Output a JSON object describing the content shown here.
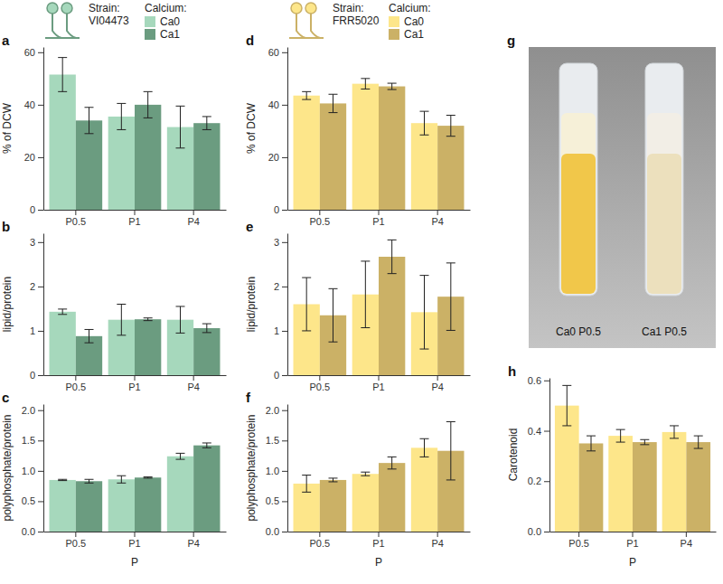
{
  "chart_data": [
    {
      "type": "bar",
      "title": "a",
      "y_label": "% of DCW",
      "strain_label": "Strain:",
      "strain": "VI04473",
      "legend_title": "Calcium:",
      "legend": "top",
      "categories": [
        "P0.5",
        "P1",
        "P4"
      ],
      "series": [
        {
          "name": "Ca0",
          "color": "#a6d8bc",
          "values": [
            51.5,
            35.5,
            31.5
          ],
          "errors": [
            6.5,
            5,
            8
          ]
        },
        {
          "name": "Ca1",
          "color": "#6b9c80",
          "values": [
            34,
            40,
            33
          ],
          "errors": [
            5,
            5,
            2.5
          ]
        }
      ],
      "ylim": [
        0,
        62
      ],
      "yticks": [
        0,
        20,
        40,
        60
      ],
      "grid": false
    },
    {
      "type": "bar",
      "title": "b",
      "y_label": "lipid/protein",
      "categories": [
        "P0.5",
        "P1",
        "P4"
      ],
      "series": [
        {
          "name": "Ca0",
          "color": "#a6d8bc",
          "values": [
            1.43,
            1.25,
            1.25
          ],
          "errors": [
            0.06,
            0.35,
            0.3
          ]
        },
        {
          "name": "Ca1",
          "color": "#6b9c80",
          "values": [
            0.88,
            1.26,
            1.06
          ],
          "errors": [
            0.15,
            0.03,
            0.1
          ]
        }
      ],
      "ylim": [
        0,
        3.2
      ],
      "yticks": [
        0,
        1,
        2,
        3
      ],
      "grid": false
    },
    {
      "type": "bar",
      "title": "c",
      "y_label": "polyphosphate/protein",
      "x_label": "P",
      "categories": [
        "P0.5",
        "P1",
        "P4"
      ],
      "series": [
        {
          "name": "Ca0",
          "color": "#a6d8bc",
          "values": [
            0.85,
            0.86,
            1.24
          ],
          "errors": [
            0.01,
            0.06,
            0.05
          ]
        },
        {
          "name": "Ca1",
          "color": "#6b9c80",
          "values": [
            0.83,
            0.89,
            1.42
          ],
          "errors": [
            0.03,
            0.01,
            0.04
          ]
        }
      ],
      "ylim": [
        0,
        2.1
      ],
      "yticks": [
        {
          "value": 0,
          "label": "0.0"
        },
        0.5,
        {
          "value": 1,
          "label": "1.0"
        },
        1.5,
        {
          "value": 2,
          "label": "2.0"
        }
      ],
      "grid": false
    },
    {
      "type": "bar",
      "title": "d",
      "y_label": "% of DCW",
      "strain_label": "Strain:",
      "strain": "FRR5020",
      "legend_title": "Calcium:",
      "legend": "top",
      "categories": [
        "P0.5",
        "P1",
        "P4"
      ],
      "series": [
        {
          "name": "Ca0",
          "color": "#fde68a",
          "values": [
            43.5,
            48,
            33
          ],
          "errors": [
            1.5,
            2,
            4.5
          ]
        },
        {
          "name": "Ca1",
          "color": "#cbb166",
          "values": [
            40.5,
            47,
            32
          ],
          "errors": [
            3.5,
            1.2,
            4
          ]
        }
      ],
      "ylim": [
        0,
        62
      ],
      "yticks": [
        0,
        20,
        40,
        60
      ],
      "grid": false
    },
    {
      "type": "bar",
      "title": "e",
      "y_label": "lipid/protein",
      "categories": [
        "P0.5",
        "P1",
        "P4"
      ],
      "series": [
        {
          "name": "Ca0",
          "color": "#fde68a",
          "values": [
            1.6,
            1.82,
            1.42
          ],
          "errors": [
            0.6,
            0.75,
            0.83
          ]
        },
        {
          "name": "Ca1",
          "color": "#cbb166",
          "values": [
            1.35,
            2.67,
            1.77
          ],
          "errors": [
            0.6,
            0.38,
            0.76
          ]
        }
      ],
      "ylim": [
        0,
        3.2
      ],
      "yticks": [
        0,
        1,
        2,
        3
      ],
      "grid": false
    },
    {
      "type": "bar",
      "title": "f",
      "y_label": "polyphosphate/protein",
      "x_label": "P",
      "categories": [
        "P0.5",
        "P1",
        "P4"
      ],
      "series": [
        {
          "name": "Ca0",
          "color": "#fde68a",
          "values": [
            0.79,
            0.95,
            1.38
          ],
          "errors": [
            0.14,
            0.03,
            0.15
          ]
        },
        {
          "name": "Ca1",
          "color": "#cbb166",
          "values": [
            0.85,
            1.13,
            1.33
          ],
          "errors": [
            0.03,
            0.1,
            0.48
          ]
        }
      ],
      "ylim": [
        0,
        2.1
      ],
      "yticks": [
        {
          "value": 0,
          "label": "0.0"
        },
        0.5,
        {
          "value": 1,
          "label": "1.0"
        },
        1.5,
        {
          "value": 2,
          "label": "2.0"
        }
      ],
      "grid": false
    },
    {
      "type": "bar",
      "title": "h",
      "y_label": "Carotenoid",
      "x_label": "P",
      "categories": [
        "P0.5",
        "P1",
        "P4"
      ],
      "series": [
        {
          "name": "Ca0",
          "color": "#fde68a",
          "values": [
            0.5,
            0.38,
            0.395
          ],
          "errors": [
            0.08,
            0.025,
            0.025
          ]
        },
        {
          "name": "Ca1",
          "color": "#cbb166",
          "values": [
            0.35,
            0.355,
            0.355
          ],
          "errors": [
            0.03,
            0.01,
            0.025
          ]
        }
      ],
      "ylim": [
        0,
        0.61
      ],
      "yticks": [
        {
          "value": 0,
          "label": "0.0"
        },
        0.2,
        0.4,
        0.6
      ],
      "grid": false
    }
  ],
  "photo": {
    "title": "g",
    "labels": [
      "Ca0 P0.5",
      "Ca1 P0.5"
    ]
  }
}
